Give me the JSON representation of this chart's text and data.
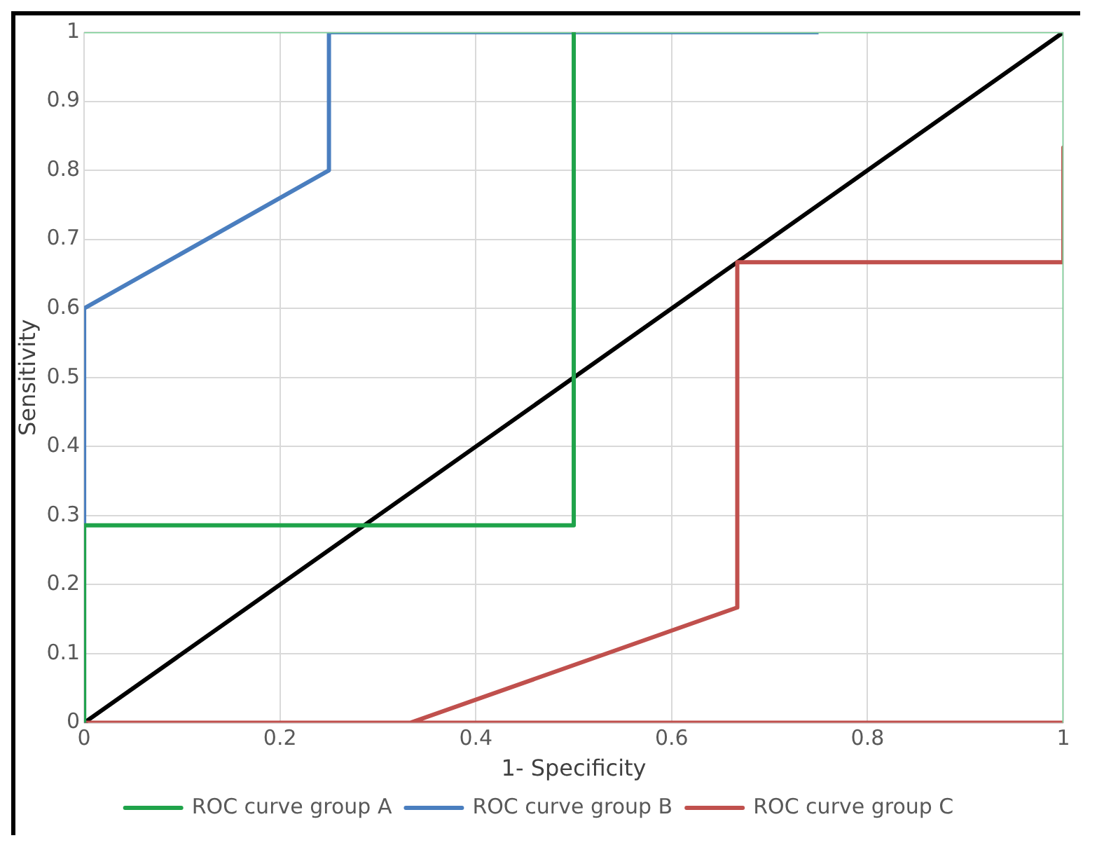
{
  "chart_data": {
    "type": "line",
    "xlabel": "1- Specificity",
    "ylabel": "Sensitivity",
    "xlim": [
      0,
      1
    ],
    "ylim": [
      0,
      1
    ],
    "xticks": [
      0,
      0.2,
      0.4,
      0.6,
      0.8,
      1
    ],
    "yticks": [
      0,
      0.1,
      0.2,
      0.3,
      0.4,
      0.5,
      0.6,
      0.7,
      0.8,
      0.9,
      1
    ],
    "grid": true,
    "legend": "bottom",
    "marker": "none",
    "line_style": "solid",
    "series": [
      {
        "name": "ROC curve group A",
        "color": "#1fa34a",
        "x": [
          0,
          0,
          0.5,
          0.5
        ],
        "values": [
          0,
          0.286,
          0.286,
          1
        ]
      },
      {
        "color": "#7fd39a",
        "x": [
          0,
          1,
          1
        ],
        "values": [
          1,
          1,
          0
        ]
      },
      {
        "name": "ROC curve group B",
        "color": "#4a7ebf",
        "x": [
          0,
          0,
          0.25,
          0.25,
          0.75
        ],
        "values": [
          0,
          0.6,
          0.8,
          1,
          1
        ]
      },
      {
        "name": "ROC curve group C",
        "color": "#c0504d",
        "x": [
          1,
          1,
          0.667,
          0.667,
          0.333,
          0,
          1
        ],
        "values": [
          0.833,
          0.667,
          0.667,
          0.167,
          0,
          0,
          0
        ]
      },
      {
        "color": "#000000",
        "x": [
          0,
          1
        ],
        "values": [
          0,
          1
        ]
      }
    ]
  }
}
